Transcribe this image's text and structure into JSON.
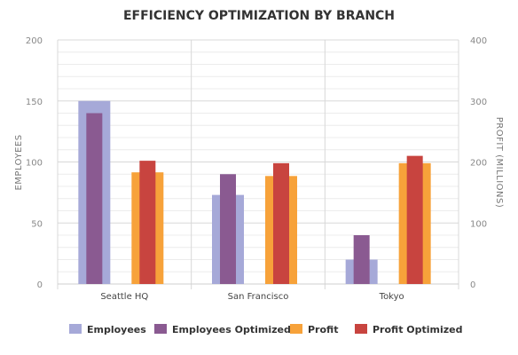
{
  "chart_data": {
    "type": "bar",
    "title": "EFFICIENCY OPTIMIZATION BY BRANCH",
    "categories": [
      "Seattle HQ",
      "San Francisco",
      "Tokyo"
    ],
    "y_left": {
      "label": "EMPLOYEES",
      "ylim": [
        0,
        200
      ],
      "ticks": [
        0,
        50,
        100,
        150,
        200
      ]
    },
    "y_right": {
      "label": "PROFIT (MILLIONS)",
      "ylim": [
        0,
        400
      ],
      "ticks": [
        0,
        100,
        200,
        300,
        400
      ]
    },
    "series": [
      {
        "name": "Employees",
        "axis": "left",
        "values": [
          150,
          73,
          20
        ],
        "color": "#a6a9d8"
      },
      {
        "name": "Employees Optimized",
        "axis": "left",
        "values": [
          140,
          90,
          40
        ],
        "color": "#8a5a91"
      },
      {
        "name": "Profit",
        "axis": "right",
        "values": [
          183,
          177,
          198
        ],
        "color": "#f7a23a"
      },
      {
        "name": "Profit Optimized",
        "axis": "right",
        "values": [
          202,
          198,
          210
        ],
        "color": "#c8443f"
      }
    ],
    "grid": true,
    "legend_position": "bottom"
  }
}
